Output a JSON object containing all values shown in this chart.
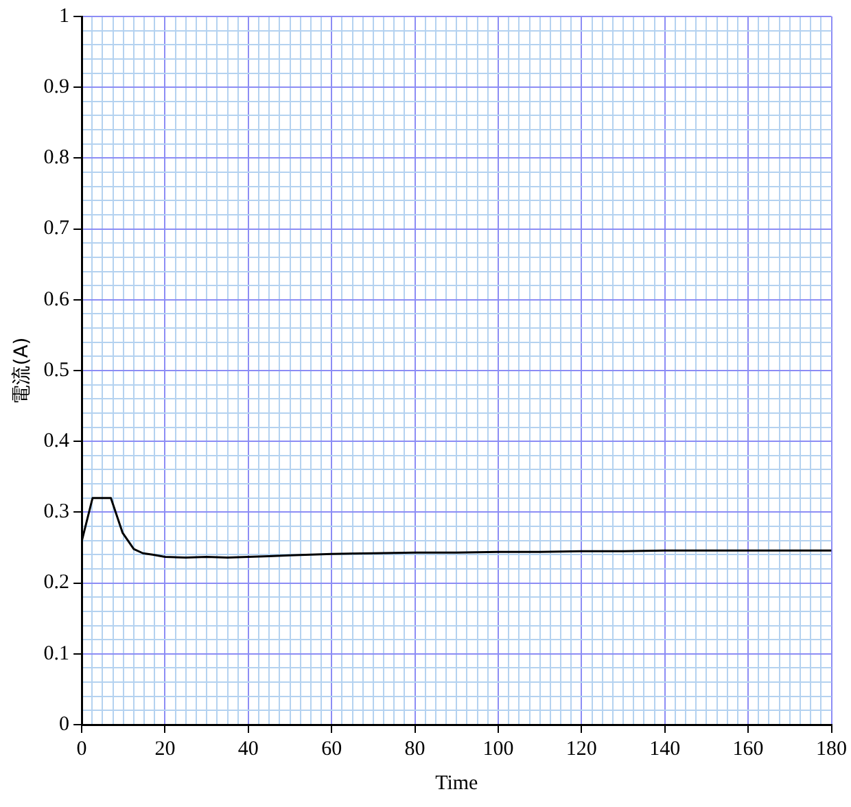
{
  "chart_data": {
    "type": "line",
    "xlabel": "Time",
    "ylabel": "電流(A)",
    "xlim": [
      0,
      180
    ],
    "xticks": [
      0,
      {
        "value": 2.5,
        "label": null
      },
      {
        "value": 5,
        "label": null
      },
      {
        "value": 7.5,
        "label": null
      },
      {
        "value": 10,
        "label": null
      },
      {
        "value": 12.5,
        "label": null
      },
      {
        "value": 15,
        "label": null
      },
      {
        "value": 17.5,
        "label": null
      },
      20,
      {
        "value": 22.5,
        "label": null
      },
      {
        "value": 25,
        "label": null
      },
      {
        "value": 27.5,
        "label": null
      },
      {
        "value": 30,
        "label": null
      },
      {
        "value": 32.5,
        "label": null
      },
      {
        "value": 35,
        "label": null
      },
      {
        "value": 37.5,
        "label": null
      },
      40,
      {
        "value": 42.5,
        "label": null
      },
      {
        "value": 45,
        "label": null
      },
      {
        "value": 47.5,
        "label": null
      },
      {
        "value": 50,
        "label": null
      },
      {
        "value": 52.5,
        "label": null
      },
      {
        "value": 55,
        "label": null
      },
      {
        "value": 57.5,
        "label": null
      },
      60,
      {
        "value": 62.5,
        "label": null
      },
      {
        "value": 65,
        "label": null
      },
      {
        "value": 67.5,
        "label": null
      },
      {
        "value": 70,
        "label": null
      },
      {
        "value": 72.5,
        "label": null
      },
      {
        "value": 75,
        "label": null
      },
      {
        "value": 77.5,
        "label": null
      },
      80,
      {
        "value": 82.5,
        "label": null
      },
      {
        "value": 85,
        "label": null
      },
      {
        "value": 87.5,
        "label": null
      },
      {
        "value": 90,
        "label": null
      },
      {
        "value": 92.5,
        "label": null
      },
      {
        "value": 95,
        "label": null
      },
      {
        "value": 97.5,
        "label": null
      },
      100,
      {
        "value": 102.5,
        "label": null
      },
      {
        "value": 105,
        "label": null
      },
      {
        "value": 107.5,
        "label": null
      },
      {
        "value": 110,
        "label": null
      },
      {
        "value": 112.5,
        "label": null
      },
      {
        "value": 115,
        "label": null
      },
      {
        "value": 117.5,
        "label": null
      },
      120,
      {
        "value": 122.5,
        "label": null
      },
      {
        "value": 125,
        "label": null
      },
      {
        "value": 127.5,
        "label": null
      },
      {
        "value": 130,
        "label": null
      },
      {
        "value": 132.5,
        "label": null
      },
      {
        "value": 135,
        "label": null
      },
      {
        "value": 137.5,
        "label": null
      },
      140,
      {
        "value": 142.5,
        "label": null
      },
      {
        "value": 145,
        "label": null
      },
      {
        "value": 147.5,
        "label": null
      },
      {
        "value": 150,
        "label": null
      },
      {
        "value": 152.5,
        "label": null
      },
      {
        "value": 155,
        "label": null
      },
      {
        "value": 157.5,
        "label": null
      },
      160,
      {
        "value": 162.5,
        "label": null
      },
      {
        "value": 165,
        "label": null
      },
      {
        "value": 167.5,
        "label": null
      },
      {
        "value": 170,
        "label": null
      },
      {
        "value": 172.5,
        "label": null
      },
      {
        "value": 175,
        "label": null
      },
      {
        "value": 177.5,
        "label": null
      },
      180
    ],
    "ylim": [
      0,
      1
    ],
    "yticks": [
      0,
      {
        "value": 0.02,
        "label": null
      },
      {
        "value": 0.04,
        "label": null
      },
      {
        "value": 0.06,
        "label": null
      },
      {
        "value": 0.08,
        "label": null
      },
      0.1,
      {
        "value": 0.12,
        "label": null
      },
      {
        "value": 0.14,
        "label": null
      },
      {
        "value": 0.16,
        "label": null
      },
      {
        "value": 0.18,
        "label": null
      },
      0.2,
      {
        "value": 0.22,
        "label": null
      },
      {
        "value": 0.24,
        "label": null
      },
      {
        "value": 0.26,
        "label": null
      },
      {
        "value": 0.28,
        "label": null
      },
      0.3,
      {
        "value": 0.32,
        "label": null
      },
      {
        "value": 0.34,
        "label": null
      },
      {
        "value": 0.36,
        "label": null
      },
      {
        "value": 0.38,
        "label": null
      },
      0.4,
      {
        "value": 0.42,
        "label": null
      },
      {
        "value": 0.44,
        "label": null
      },
      {
        "value": 0.46,
        "label": null
      },
      {
        "value": 0.48,
        "label": null
      },
      0.5,
      {
        "value": 0.52,
        "label": null
      },
      {
        "value": 0.54,
        "label": null
      },
      {
        "value": 0.56,
        "label": null
      },
      {
        "value": 0.58,
        "label": null
      },
      0.6,
      {
        "value": 0.62,
        "label": null
      },
      {
        "value": 0.64,
        "label": null
      },
      {
        "value": 0.66,
        "label": null
      },
      {
        "value": 0.68,
        "label": null
      },
      0.7,
      {
        "value": 0.72,
        "label": null
      },
      {
        "value": 0.74,
        "label": null
      },
      {
        "value": 0.76,
        "label": null
      },
      {
        "value": 0.78,
        "label": null
      },
      0.8,
      {
        "value": 0.82,
        "label": null
      },
      {
        "value": 0.84,
        "label": null
      },
      {
        "value": 0.86,
        "label": null
      },
      {
        "value": 0.88,
        "label": null
      },
      0.9,
      {
        "value": 0.92,
        "label": null
      },
      {
        "value": 0.94,
        "label": null
      },
      {
        "value": 0.96,
        "label": null
      },
      {
        "value": 0.98,
        "label": null
      },
      1
    ],
    "grid": true,
    "legend": false,
    "marker": "none",
    "line_style": "solid",
    "series": [
      {
        "color": "#000000",
        "x": [
          0,
          2.6,
          7,
          9.8,
          12.5,
          14.7,
          17,
          20,
          25,
          30,
          35,
          40,
          45,
          50,
          55,
          60,
          70,
          80,
          90,
          100,
          110,
          120,
          130,
          140,
          150,
          160,
          170,
          180
        ],
        "values": [
          0.259,
          0.32,
          0.32,
          0.271,
          0.248,
          0.242,
          0.24,
          0.237,
          0.236,
          0.237,
          0.236,
          0.237,
          0.238,
          0.239,
          0.24,
          0.241,
          0.242,
          0.243,
          0.243,
          0.244,
          0.244,
          0.245,
          0.245,
          0.246,
          0.246,
          0.246,
          0.246,
          0.246
        ]
      }
    ]
  }
}
